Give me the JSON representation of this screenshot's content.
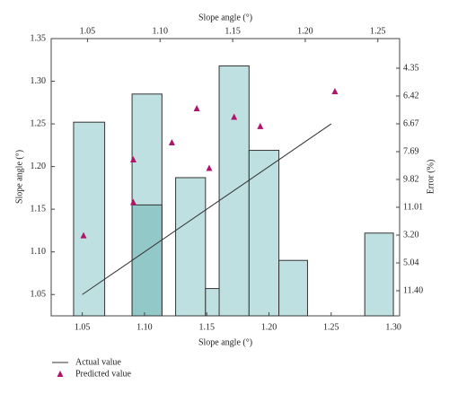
{
  "chart_data": {
    "type": "bar",
    "x_label_top": "Slope angle (°)",
    "x_label": "Slope angle (°)",
    "y_label": "Slope angle (°)",
    "y2_label": "Error (%)",
    "xlim": [
      1.025,
      1.305
    ],
    "xticks": [
      1.05,
      {
        "value": 1.1,
        "label": "1.10"
      },
      1.15,
      {
        "value": 1.2,
        "label": "1.20"
      },
      1.25,
      {
        "value": 1.3,
        "label": "1.30"
      }
    ],
    "x2lim": [
      1.025,
      1.265
    ],
    "x2ticks": [
      1.05,
      {
        "value": 1.1,
        "label": "1.10"
      },
      1.15,
      {
        "value": 1.2,
        "label": "1.20"
      },
      1.25
    ],
    "ylim": [
      1.025,
      1.35
    ],
    "yticks": [
      1.05,
      {
        "value": 1.1,
        "label": "1.10"
      },
      1.15,
      {
        "value": 1.2,
        "label": "1.20"
      },
      1.25,
      {
        "value": 1.3,
        "label": "1.30"
      },
      1.35
    ],
    "y2_labels": [
      "4.35",
      "6.42",
      "6.67",
      "7.69",
      "9.82",
      "11.01",
      "3.20",
      "5.04",
      "11.40"
    ],
    "series": [
      {
        "type": "bar",
        "color": "#bfe0e0",
        "bin_left": [
          1.043,
          1.09,
          1.125,
          1.149,
          1.16,
          1.184,
          1.208,
          1.277
        ],
        "bin_right": [
          1.068,
          1.114,
          1.149,
          1.172,
          1.184,
          1.208,
          1.231,
          1.3
        ],
        "values": [
          1.252,
          1.285,
          1.187,
          1.057,
          1.318,
          1.219,
          1.09,
          1.122
        ]
      },
      {
        "type": "bar",
        "color": "#93c8c8",
        "bin_left": [
          1.09
        ],
        "bin_right": [
          1.114
        ],
        "values": [
          1.155
        ]
      },
      {
        "type": "line",
        "name": "Actual value",
        "color": "#333333",
        "x": [
          1.05,
          1.25
        ],
        "values": [
          1.05,
          1.25
        ]
      },
      {
        "type": "scatter",
        "name": "Predicted value",
        "color": "#b0136b",
        "x": [
          1.051,
          1.091,
          1.091,
          1.122,
          1.142,
          1.152,
          1.172,
          1.193,
          1.253
        ],
        "values": [
          1.119,
          1.208,
          1.158,
          1.228,
          1.268,
          1.198,
          1.258,
          1.247,
          1.288
        ]
      }
    ]
  }
}
